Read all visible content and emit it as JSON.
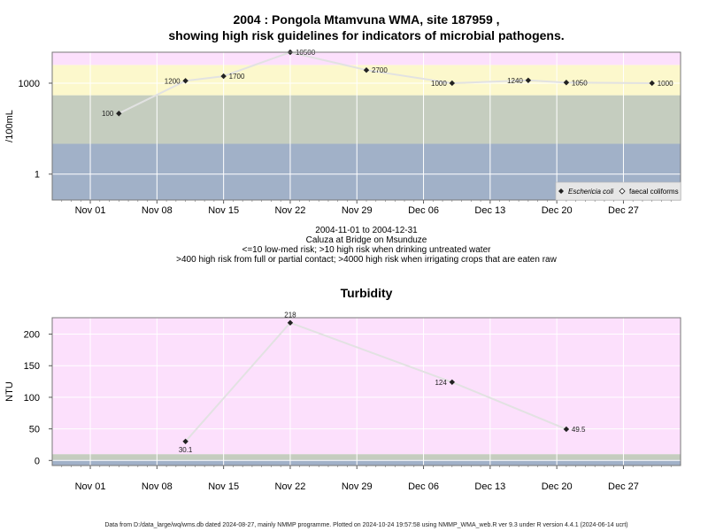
{
  "colors": {
    "band_pink": "#fce0fc",
    "band_yellow": "#fcf8cc",
    "band_green": "#c5cdbf",
    "band_blue": "#a1b1c8",
    "line": "#e2e2e2",
    "marker": "#222222",
    "grid": "#ffffff"
  },
  "footer": "Data from D:/data_large/wq/wms.db dated 2024-08-27, mainly NMMP programme. Plotted on 2024-10-24 19:57:58 using NMMP_WMA_web.R ver 9.3 under R version 4.4.1 (2024-06-14 ucrt)",
  "chart_data": [
    {
      "type": "scatter",
      "title_line1": "2004 : Pongola Mtamvuna WMA, site 187959 ,",
      "title_line2": "showing high risk guidelines for indicators of microbial pathogens.",
      "ylabel": "/100mL",
      "y_scale": "log10",
      "ylim": [
        0.14,
        10500
      ],
      "yticks": [
        {
          "label": "1",
          "value": 1
        },
        {
          "label": "1000",
          "value": 1000
        }
      ],
      "xlim": [
        "2004-10-28",
        "2005-01-02"
      ],
      "xticks": [
        {
          "label": "Nov 01",
          "date": "2004-11-01"
        },
        {
          "label": "Nov 08",
          "date": "2004-11-08"
        },
        {
          "label": "Nov 15",
          "date": "2004-11-15"
        },
        {
          "label": "Nov 22",
          "date": "2004-11-22"
        },
        {
          "label": "Nov 29",
          "date": "2004-11-29"
        },
        {
          "label": "Dec 06",
          "date": "2004-12-06"
        },
        {
          "label": "Dec 13",
          "date": "2004-12-13"
        },
        {
          "label": "Dec 20",
          "date": "2004-12-20"
        },
        {
          "label": "Dec 27",
          "date": "2004-12-27"
        }
      ],
      "bands": [
        {
          "from": 0.14,
          "to": 10,
          "color": "#a1b1c8"
        },
        {
          "from": 10,
          "to": 400,
          "color": "#c5cdbf"
        },
        {
          "from": 400,
          "to": 4000,
          "color": "#fcf8cc"
        },
        {
          "from": 4000,
          "to": 10500,
          "color": "#fce0fc"
        }
      ],
      "series": [
        {
          "name": "Eschericia coli",
          "points": [
            {
              "date": "2004-11-04",
              "value": 100,
              "label": "100",
              "label_side": "left"
            },
            {
              "date": "2004-11-11",
              "value": 1200,
              "label": "1200",
              "label_side": "left"
            },
            {
              "date": "2004-11-15",
              "value": 1700,
              "label": "1700",
              "label_side": "right"
            },
            {
              "date": "2004-11-22",
              "value": 10500,
              "label": "10500",
              "label_side": "right"
            },
            {
              "date": "2004-11-30",
              "value": 2700,
              "label": "2700",
              "label_side": "right"
            },
            {
              "date": "2004-12-09",
              "value": 1000,
              "label": "1000",
              "label_side": "left"
            },
            {
              "date": "2004-12-17",
              "value": 1240,
              "label": "1240",
              "label_side": "left"
            },
            {
              "date": "2004-12-21",
              "value": 1050,
              "label": "1050",
              "label_side": "right"
            },
            {
              "date": "2004-12-30",
              "value": 1000,
              "label": "1000",
              "label_side": "right"
            }
          ]
        }
      ],
      "legend": {
        "position": "bottom-right",
        "entries": [
          {
            "label": "Eschericia coli",
            "marker": "filled-diamond"
          },
          {
            "label": "faecal coliforms",
            "marker": "open-diamond"
          }
        ]
      },
      "subtitle_lines": [
        "2004-11-01 to 2004-12-31",
        "Caluza at Bridge on Msunduze",
        "<=10 low-med risk; >10 high risk when drinking untreated water",
        ">400 high risk from full or partial contact; >4000 high risk when irrigating crops that are eaten raw"
      ]
    },
    {
      "type": "scatter",
      "title": "Turbidity",
      "ylabel": "NTU",
      "y_scale": "linear",
      "ylim": [
        -8,
        226
      ],
      "yticks": [
        {
          "label": "0",
          "value": 0
        },
        {
          "label": "50",
          "value": 50
        },
        {
          "label": "100",
          "value": 100
        },
        {
          "label": "150",
          "value": 150
        },
        {
          "label": "200",
          "value": 200
        }
      ],
      "xlim": [
        "2004-10-28",
        "2005-01-02"
      ],
      "xticks": [
        {
          "label": "Nov 01",
          "date": "2004-11-01"
        },
        {
          "label": "Nov 08",
          "date": "2004-11-08"
        },
        {
          "label": "Nov 15",
          "date": "2004-11-15"
        },
        {
          "label": "Nov 22",
          "date": "2004-11-22"
        },
        {
          "label": "Nov 29",
          "date": "2004-11-29"
        },
        {
          "label": "Dec 06",
          "date": "2004-12-06"
        },
        {
          "label": "Dec 13",
          "date": "2004-12-13"
        },
        {
          "label": "Dec 20",
          "date": "2004-12-20"
        },
        {
          "label": "Dec 27",
          "date": "2004-12-27"
        }
      ],
      "bands": [
        {
          "from": -8,
          "to": 1,
          "color": "#a1b1c8"
        },
        {
          "from": 1,
          "to": 10,
          "color": "#c5cdbf"
        },
        {
          "from": 10,
          "to": 226,
          "color": "#fce0fc"
        }
      ],
      "series": [
        {
          "points": [
            {
              "date": "2004-11-11",
              "value": 30.1,
              "label": "30.1",
              "label_side": "below"
            },
            {
              "date": "2004-11-22",
              "value": 218,
              "label": "218",
              "label_side": "above"
            },
            {
              "date": "2004-12-09",
              "value": 124,
              "label": "124",
              "label_side": "left"
            },
            {
              "date": "2004-12-21",
              "value": 49.5,
              "label": "49.5",
              "label_side": "right"
            }
          ]
        }
      ]
    }
  ]
}
